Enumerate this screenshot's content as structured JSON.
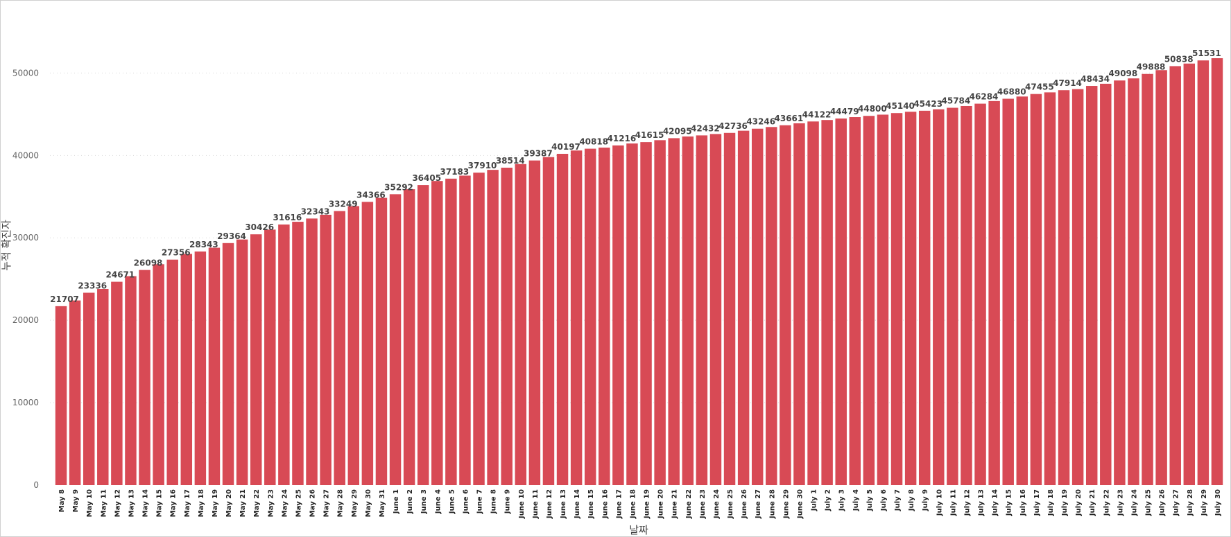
{
  "chart_data": {
    "type": "bar",
    "xlabel": "날짜",
    "ylabel": "누적 확진자",
    "ylim": [
      0,
      55500
    ],
    "yticks": [
      0,
      10000,
      20000,
      30000,
      40000,
      50000
    ],
    "grid": "horizontal dotted",
    "colors": {
      "bar": "#d84a55",
      "grid": "#d9d9d9"
    },
    "categories": [
      "May 8",
      "May 9",
      "May 10",
      "May 11",
      "May 12",
      "May 13",
      "May 14",
      "May 15",
      "May 16",
      "May 17",
      "May 18",
      "May 19",
      "May 20",
      "May 21",
      "May 22",
      "May 23",
      "May 24",
      "May 25",
      "May 26",
      "May 27",
      "May 28",
      "May 29",
      "May 30",
      "May 31",
      "June 1",
      "June 2",
      "June 3",
      "June 4",
      "June 5",
      "June 6",
      "June 7",
      "June 8",
      "June 9",
      "June 10",
      "June 11",
      "June 12",
      "June 13",
      "June 14",
      "June 15",
      "June 16",
      "June 17",
      "June 18",
      "June 19",
      "June 20",
      "June 21",
      "June 22",
      "June 23",
      "June 24",
      "June 25",
      "June 26",
      "June 27",
      "June 28",
      "June 29",
      "June 30",
      "July 1",
      "July 2",
      "July 3",
      "July 4",
      "July 5",
      "July 6",
      "July 7",
      "July 8",
      "July 9",
      "July 10",
      "July 11",
      "July 12",
      "July 13",
      "July 14",
      "July 15",
      "July 16",
      "July 17",
      "July 18",
      "July 19",
      "July 20",
      "July 21",
      "July 22",
      "July 23",
      "July 24",
      "July 25",
      "July 26",
      "July 27",
      "July 28",
      "July 29",
      "July 30"
    ],
    "values": [
      21707,
      22400,
      23336,
      23800,
      24671,
      25350,
      26098,
      26800,
      27356,
      28050,
      28343,
      28800,
      29364,
      29800,
      30426,
      31000,
      31616,
      31950,
      32343,
      32800,
      33249,
      33850,
      34366,
      34850,
      35292,
      35900,
      36405,
      36900,
      37183,
      37550,
      37910,
      38250,
      38514,
      38950,
      39387,
      39800,
      40197,
      40600,
      40818,
      40950,
      41216,
      41450,
      41615,
      41850,
      42095,
      42300,
      42432,
      42600,
      42736,
      43000,
      43246,
      43450,
      43661,
      43900,
      44122,
      44300,
      44479,
      44650,
      44800,
      44950,
      45140,
      45300,
      45423,
      45600,
      45784,
      46000,
      46284,
      46600,
      46880,
      47150,
      47455,
      47650,
      47914,
      48050,
      48434,
      48700,
      49098,
      49350,
      49888,
      50350,
      50838,
      51150,
      51531,
      51800
    ],
    "data_labels": [
      {
        "index": 0,
        "text": "21707"
      },
      {
        "index": 2,
        "text": "23336"
      },
      {
        "index": 4,
        "text": "24671"
      },
      {
        "index": 6,
        "text": "26098"
      },
      {
        "index": 8,
        "text": "27356"
      },
      {
        "index": 10,
        "text": "28343"
      },
      {
        "index": 12,
        "text": "29364"
      },
      {
        "index": 14,
        "text": "30426"
      },
      {
        "index": 16,
        "text": "31616"
      },
      {
        "index": 18,
        "text": "32343"
      },
      {
        "index": 20,
        "text": "33249"
      },
      {
        "index": 22,
        "text": "34366"
      },
      {
        "index": 24,
        "text": "35292"
      },
      {
        "index": 26,
        "text": "36405"
      },
      {
        "index": 28,
        "text": "37183"
      },
      {
        "index": 30,
        "text": "37910"
      },
      {
        "index": 32,
        "text": "38514"
      },
      {
        "index": 34,
        "text": "39387"
      },
      {
        "index": 36,
        "text": "40197"
      },
      {
        "index": 38,
        "text": "40818"
      },
      {
        "index": 40,
        "text": "41216"
      },
      {
        "index": 42,
        "text": "41615"
      },
      {
        "index": 44,
        "text": "42095"
      },
      {
        "index": 46,
        "text": "42432"
      },
      {
        "index": 48,
        "text": "42736"
      },
      {
        "index": 50,
        "text": "43246"
      },
      {
        "index": 52,
        "text": "43661"
      },
      {
        "index": 54,
        "text": "44122"
      },
      {
        "index": 56,
        "text": "44479"
      },
      {
        "index": 58,
        "text": "44800"
      },
      {
        "index": 60,
        "text": "45140"
      },
      {
        "index": 62,
        "text": "45423"
      },
      {
        "index": 64,
        "text": "45784"
      },
      {
        "index": 66,
        "text": "46284"
      },
      {
        "index": 68,
        "text": "46880"
      },
      {
        "index": 70,
        "text": "47455"
      },
      {
        "index": 72,
        "text": "47914"
      },
      {
        "index": 74,
        "text": "48434"
      },
      {
        "index": 76,
        "text": "49098"
      },
      {
        "index": 78,
        "text": "49888"
      },
      {
        "index": 80,
        "text": "50838"
      },
      {
        "index": 82,
        "text": "51531"
      }
    ]
  }
}
